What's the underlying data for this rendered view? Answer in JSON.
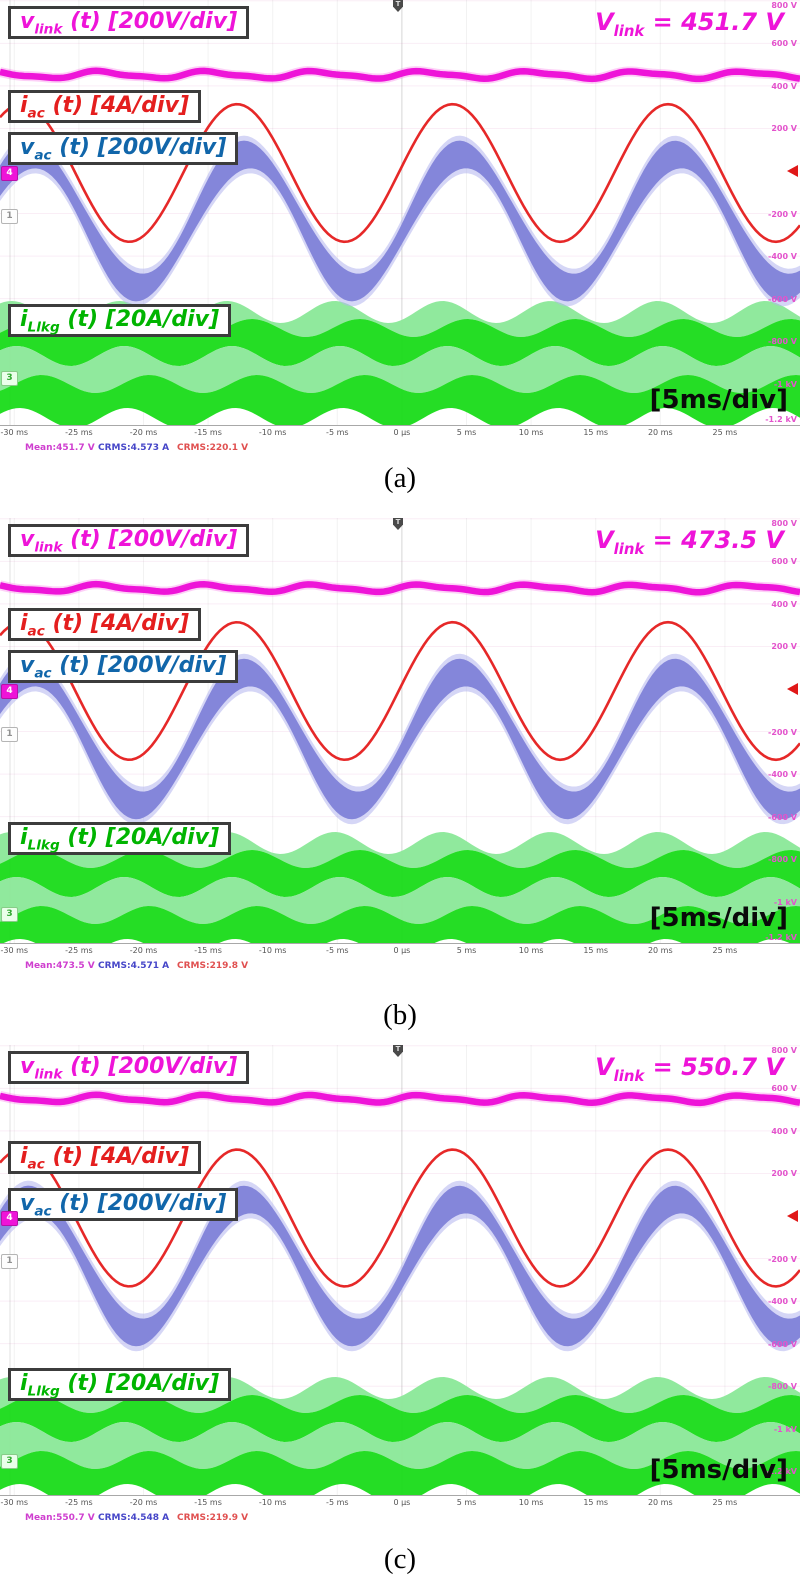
{
  "figure": {
    "type": "oscilloscope-captures",
    "panels_count": 3
  },
  "labels": {
    "vlink": {
      "pre": "v",
      "sub": "link",
      "rest": " (t) [200V/div]"
    },
    "iac": {
      "pre": "i",
      "sub": "ac",
      "rest": " (t) [4A/div]"
    },
    "vac": {
      "pre": "v",
      "sub": "ac",
      "rest": " (t) [200V/div]"
    },
    "illkg": {
      "pre": "i",
      "sub": "Llkg",
      "rest": " (t) [20A/div]"
    },
    "timebase": "[5ms/div]",
    "trigger": "T",
    "badges": {
      "ch4": "4",
      "ch1": "1",
      "ch3": "3"
    }
  },
  "axis": {
    "time_ticks": [
      "-30 ms",
      "-25 ms",
      "-20 ms",
      "-15 ms",
      "-10 ms",
      "-5 ms",
      "0 μs",
      "5 ms",
      "10 ms",
      "15 ms",
      "20 ms",
      "25 ms"
    ],
    "scale_labels": [
      "800 V",
      "600 V",
      "400 V",
      "200 V",
      "-200 V",
      "-400 V",
      "-600 V",
      "-800 V",
      "-1 kV",
      "-1.2 kV"
    ],
    "scale_values": [
      800,
      600,
      400,
      200,
      -200,
      -400,
      -600,
      -800,
      -1000,
      -1200
    ],
    "volts_per_div": 200,
    "time_per_div_ms": 5
  },
  "colors": {
    "magenta": "#ee14d8",
    "magenta_halo": "#f876e8",
    "red": "#e62828",
    "blue_trace": "#7f82d8",
    "blue_halo": "#b3b5ee",
    "blue_label": "#1166aa",
    "green_dark": "#1edc1e",
    "green_light": "#8ce89a",
    "green_label": "#00b400",
    "scale_text": "#e353cc",
    "tick_text": "#555555",
    "grid": "#cc55aa"
  },
  "chart_data": [
    {
      "panel": "a",
      "type": "line",
      "caption": "(a)",
      "x_range_ms": [
        -30,
        25
      ],
      "vlink_value": {
        "pre": "V",
        "sub": "link",
        "rest": " = 451.7 V"
      },
      "series": [
        {
          "name": "v_link(t)",
          "scale": "200V/div",
          "mean_V": 451.7,
          "waveform": "flat with small 120 Hz ripple",
          "color": "#ee14d8"
        },
        {
          "name": "i_ac(t)",
          "scale": "4A/div",
          "rms_A": 4.573,
          "frequency_Hz": 60,
          "waveform": "sine",
          "color": "#e62828"
        },
        {
          "name": "v_ac(t)",
          "scale": "200V/div",
          "rms_V": 220.1,
          "frequency_Hz": 60,
          "waveform": "sine with PWM ripple band",
          "color": "#7f82d8"
        },
        {
          "name": "i_Llkg(t)",
          "scale": "20A/div",
          "envelope_pp_A": 52,
          "envelope_frequency_Hz": 120,
          "waveform": "high-frequency carrier band with 120 Hz envelope",
          "color": "#1edc1e"
        }
      ],
      "measurements": [
        {
          "text": "Mean:451.7 V",
          "color": "#cf3fcf"
        },
        {
          "text": "CRMS:4.573 A",
          "color": "#4646c8"
        },
        {
          "text": "CRMS:220.1 V",
          "color": "#e05050"
        }
      ]
    },
    {
      "panel": "b",
      "type": "line",
      "caption": "(b)",
      "x_range_ms": [
        -30,
        25
      ],
      "vlink_value": {
        "pre": "V",
        "sub": "link",
        "rest": " = 473.5 V"
      },
      "series": [
        {
          "name": "v_link(t)",
          "scale": "200V/div",
          "mean_V": 473.5,
          "waveform": "flat with small 120 Hz ripple",
          "color": "#ee14d8"
        },
        {
          "name": "i_ac(t)",
          "scale": "4A/div",
          "rms_A": 4.571,
          "frequency_Hz": 60,
          "waveform": "sine",
          "color": "#e62828"
        },
        {
          "name": "v_ac(t)",
          "scale": "200V/div",
          "rms_V": 219.8,
          "frequency_Hz": 60,
          "waveform": "sine with PWM ripple band",
          "color": "#7f82d8"
        },
        {
          "name": "i_Llkg(t)",
          "scale": "20A/div",
          "envelope_pp_A": 52,
          "envelope_frequency_Hz": 120,
          "waveform": "high-frequency carrier band with 120 Hz envelope",
          "color": "#1edc1e"
        }
      ],
      "measurements": [
        {
          "text": "Mean:473.5 V",
          "color": "#cf3fcf"
        },
        {
          "text": "CRMS:4.571 A",
          "color": "#4646c8"
        },
        {
          "text": "CRMS:219.8 V",
          "color": "#e05050"
        }
      ]
    },
    {
      "panel": "c",
      "type": "line",
      "caption": "(c)",
      "x_range_ms": [
        -30,
        25
      ],
      "vlink_value": {
        "pre": "V",
        "sub": "link",
        "rest": " = 550.7 V"
      },
      "series": [
        {
          "name": "v_link(t)",
          "scale": "200V/div",
          "mean_V": 550.7,
          "waveform": "flat with small 120 Hz ripple",
          "color": "#ee14d8"
        },
        {
          "name": "i_ac(t)",
          "scale": "4A/div",
          "rms_A": 4.548,
          "frequency_Hz": 60,
          "waveform": "sine",
          "color": "#e62828"
        },
        {
          "name": "v_ac(t)",
          "scale": "200V/div",
          "rms_V": 219.9,
          "frequency_Hz": 60,
          "waveform": "sine with PWM ripple band",
          "color": "#7f82d8"
        },
        {
          "name": "i_Llkg(t)",
          "scale": "20A/div",
          "envelope_pp_A": 52,
          "envelope_frequency_Hz": 120,
          "waveform": "high-frequency carrier band with 120 Hz envelope",
          "color": "#1edc1e"
        }
      ],
      "measurements": [
        {
          "text": "Mean:550.7 V",
          "color": "#cf3fcf"
        },
        {
          "text": "CRMS:4.548 A",
          "color": "#4646c8"
        },
        {
          "text": "CRMS:219.9 V",
          "color": "#e05050"
        }
      ]
    }
  ]
}
